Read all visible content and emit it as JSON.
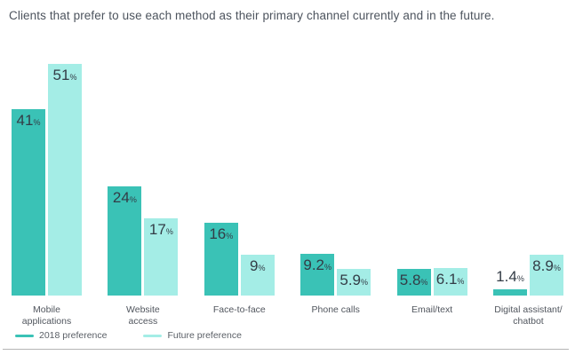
{
  "title": "Clients that prefer to use each method as their primary channel currently and in the future.",
  "chart_data": {
    "type": "bar",
    "categories": [
      "Mobile applications",
      "Website access",
      "Face-to-face",
      "Phone calls",
      "Email/text",
      "Digital assistant/chatbot"
    ],
    "category_lines": [
      [
        "Mobile",
        "applications"
      ],
      [
        "Website",
        "access"
      ],
      [
        "Face-to-face"
      ],
      [
        "Phone calls"
      ],
      [
        "Email/text"
      ],
      [
        "Digital assistant/",
        "chatbot"
      ]
    ],
    "series": [
      {
        "name": "2018 preference",
        "color": "#3AC2B6",
        "values": [
          41,
          24,
          16,
          9.2,
          5.8,
          1.4
        ],
        "labels": [
          "41",
          "24",
          "16",
          "9.2",
          "5.8",
          "1.4"
        ]
      },
      {
        "name": "Future preference",
        "color": "#A4EDE6",
        "values": [
          51,
          17,
          9,
          5.9,
          6.1,
          8.9
        ],
        "labels": [
          "51",
          "17",
          "9",
          "5.9",
          "6.1",
          "8.9"
        ]
      }
    ],
    "value_suffix": "%",
    "xlabel": "",
    "ylabel": "",
    "ylim": [
      0,
      53.3
    ],
    "grid": false,
    "axis_line_color": "#b5b5b5",
    "legend_position": "bottom-left"
  }
}
